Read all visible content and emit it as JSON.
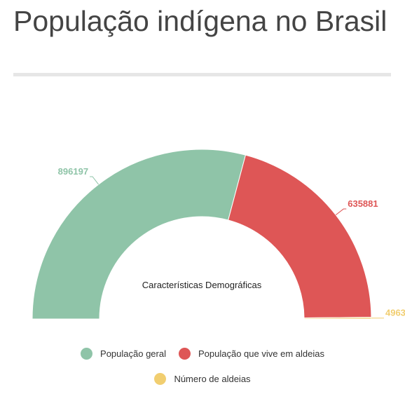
{
  "page": {
    "title": "População indígena no Brasil"
  },
  "chart_data": {
    "type": "pie",
    "variant": "semi-donut",
    "center_label": "Características Demográficas",
    "series": [
      {
        "name": "População geral",
        "value": 896197,
        "color": "#8fc4a8"
      },
      {
        "name": "População que vive em aldeias",
        "value": 635881,
        "color": "#de5656"
      },
      {
        "name": "Número de aldeias",
        "value": 4963,
        "color": "#f1ce70"
      }
    ],
    "data_labels": true,
    "legend_position": "bottom"
  }
}
